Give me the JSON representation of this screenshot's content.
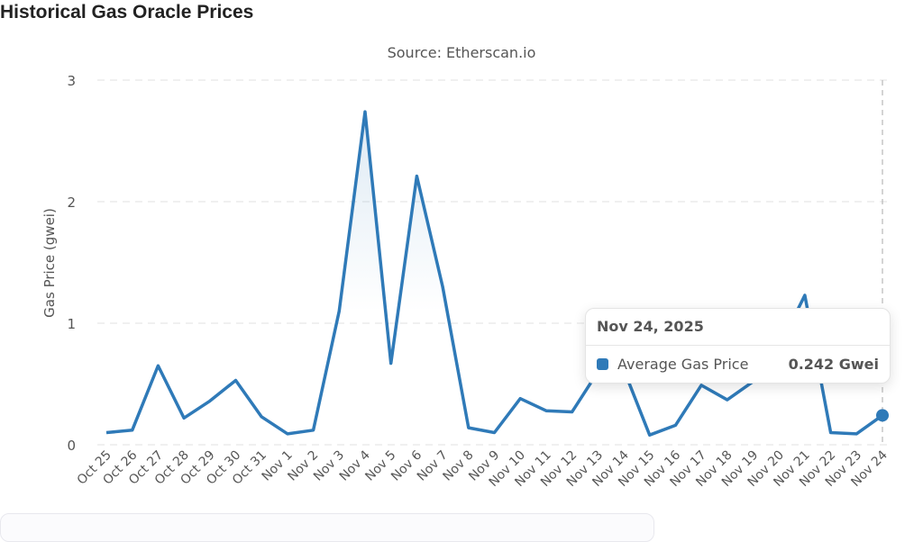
{
  "page": {
    "title": "Historical Gas Oracle Prices"
  },
  "chart_data": {
    "type": "area",
    "subtitle": "Source: Etherscan.io",
    "ylabel": "Gas Price (gwei)",
    "xlabel": "",
    "ylim": [
      0,
      3
    ],
    "yticks": [
      "0",
      "1",
      "2",
      "3"
    ],
    "grid": true,
    "line_color": "#2f7ab8",
    "categories": [
      "Oct 25",
      "Oct 26",
      "Oct 27",
      "Oct 28",
      "Oct 29",
      "Oct 30",
      "Oct 31",
      "Nov 1",
      "Nov 2",
      "Nov 3",
      "Nov 4",
      "Nov 5",
      "Nov 6",
      "Nov 7",
      "Nov 8",
      "Nov 9",
      "Nov 10",
      "Nov 11",
      "Nov 12",
      "Nov 13",
      "Nov 14",
      "Nov 15",
      "Nov 16",
      "Nov 17",
      "Nov 18",
      "Nov 19",
      "Nov 20",
      "Nov 21",
      "Nov 22",
      "Nov 23",
      "Nov 24"
    ],
    "series": [
      {
        "name": "Average Gas Price",
        "values": [
          0.1,
          0.12,
          0.65,
          0.22,
          0.36,
          0.53,
          0.23,
          0.09,
          0.12,
          1.1,
          2.74,
          0.67,
          2.21,
          1.3,
          0.14,
          0.1,
          0.38,
          0.28,
          0.27,
          0.6,
          0.62,
          0.08,
          0.16,
          0.49,
          0.37,
          0.52,
          0.8,
          1.23,
          0.1,
          0.09,
          0.242
        ]
      }
    ],
    "tooltip": {
      "date": "Nov 24, 2025",
      "series": "Average Gas Price",
      "value": "0.242 Gwei"
    },
    "highlighted_index": 30
  }
}
